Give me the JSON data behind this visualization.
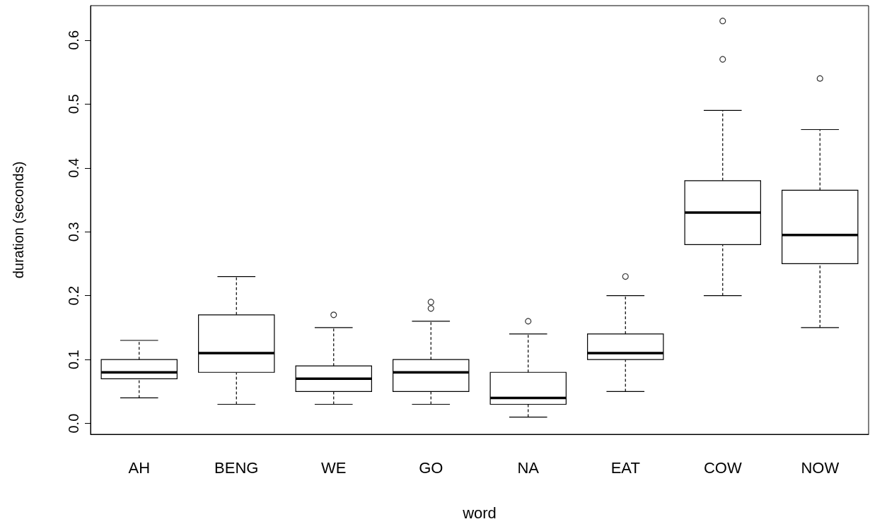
{
  "chart_data": {
    "type": "box",
    "xlabel": "word",
    "ylabel": "duration (seconds)",
    "categories": [
      "AH",
      "BENG",
      "WE",
      "GO",
      "NA",
      "EAT",
      "COW",
      "NOW"
    ],
    "ylim": [
      -0.017,
      0.654
    ],
    "yticks": [
      {
        "value": 0,
        "label": "0.0"
      },
      {
        "value": 0.1,
        "label": "0.1"
      },
      {
        "value": 0.2,
        "label": "0.2"
      },
      {
        "value": 0.3,
        "label": "0.3"
      },
      {
        "value": 0.4,
        "label": "0.4"
      },
      {
        "value": 0.5,
        "label": "0.5"
      },
      {
        "value": 0.6,
        "label": "0.6"
      }
    ],
    "series": [
      {
        "color": "#000000",
        "boxes": [
          {
            "low": 0.04,
            "q1": 0.07,
            "median": 0.08,
            "q3": 0.1,
            "high": 0.13
          },
          {
            "low": 0.03,
            "q1": 0.08,
            "median": 0.11,
            "q3": 0.17,
            "high": 0.23
          },
          {
            "low": 0.03,
            "q1": 0.05,
            "median": 0.07,
            "q3": 0.09,
            "high": 0.15,
            "outliers": [
              0.17
            ]
          },
          {
            "low": 0.03,
            "q1": 0.05,
            "median": 0.08,
            "q3": 0.1,
            "high": 0.16,
            "outliers": [
              0.18,
              0.19
            ]
          },
          {
            "low": 0.01,
            "q1": 0.03,
            "median": 0.04,
            "q3": 0.08,
            "high": 0.14,
            "outliers": [
              0.16
            ]
          },
          {
            "low": 0.05,
            "q1": 0.1,
            "median": 0.11,
            "q3": 0.14,
            "high": 0.2,
            "outliers": [
              0.23
            ]
          },
          {
            "low": 0.2,
            "q1": 0.28,
            "median": 0.33,
            "q3": 0.38,
            "high": 0.49,
            "outliers": [
              0.57,
              0.63
            ]
          },
          {
            "low": 0.15,
            "q1": 0.25,
            "median": 0.295,
            "q3": 0.365,
            "high": 0.46,
            "outliers": [
              0.54
            ]
          }
        ]
      }
    ]
  }
}
